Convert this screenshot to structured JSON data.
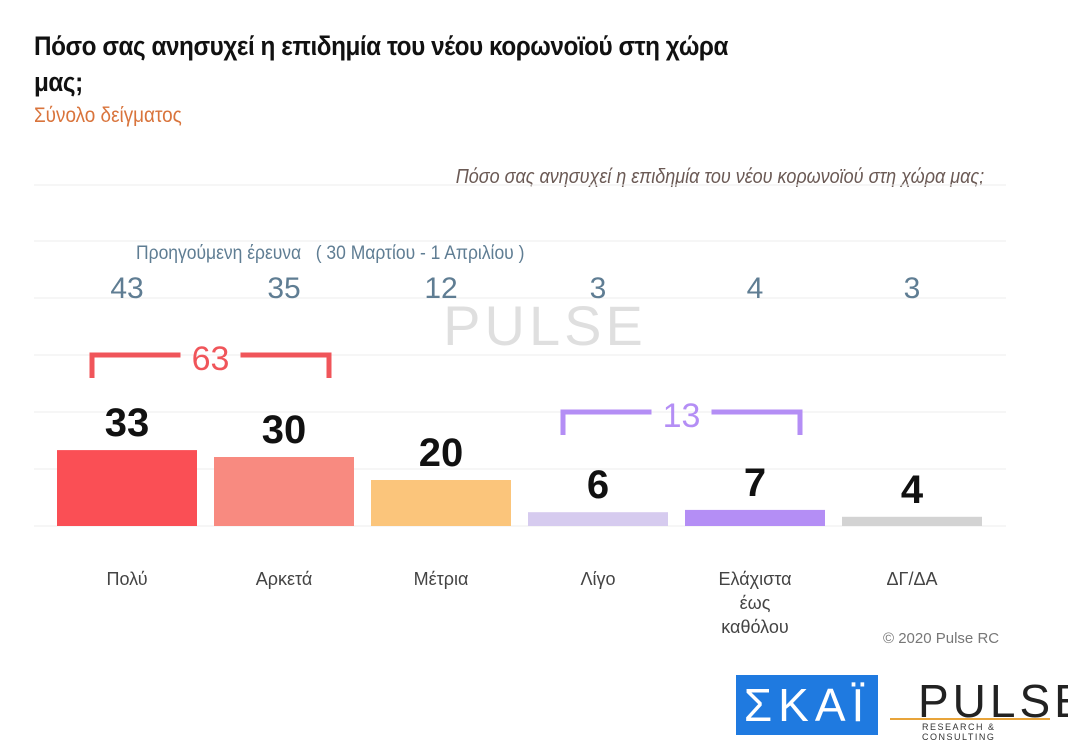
{
  "chart_data": {
    "type": "bar",
    "title": "Πόσο σας ανησυχεί η επιδημία του νέου κορωνοϊού στη χώρα μας;",
    "subtitle": "Σύνολο δείγματος",
    "inner_title": "Πόσο σας ανησυχεί η επιδημία του νέου κορωνοϊού στη χώρα μας;",
    "categories": [
      "Πολύ",
      "Αρκετά",
      "Μέτρια",
      "Λίγο",
      "Ελάχιστα έως καθόλου",
      "ΔΓ/ΔΑ"
    ],
    "category_lines": [
      [
        "Πολύ"
      ],
      [
        "Αρκετά"
      ],
      [
        "Μέτρια"
      ],
      [
        "Λίγο"
      ],
      [
        "Ελάχιστα",
        "έως",
        "καθόλου"
      ],
      [
        "ΔΓ/ΔΑ"
      ]
    ],
    "values": [
      33,
      30,
      20,
      6,
      7,
      4
    ],
    "colors": [
      "#fa4f55",
      "#f88a80",
      "#fbc57b",
      "#d6cbef",
      "#b48ef5",
      "#d3d3d3"
    ],
    "previous_label": "Προηγούμενη έρευνα   ( 30 Μαρτίου - 1 Απριλίου )",
    "previous_values": [
      43,
      35,
      12,
      3,
      4,
      3
    ],
    "groups": [
      {
        "label": "63",
        "from": 0,
        "to": 1,
        "color": "#f0555a"
      },
      {
        "label": "13",
        "from": 3,
        "to": 4,
        "color": "#b48ef5"
      }
    ],
    "ylim": [
      0,
      100
    ],
    "grid": true
  },
  "copyright": "© 2020 Pulse RC",
  "logos": {
    "skai": "ΣΚΑΪ",
    "pulse": "PULSE",
    "pulse_sub": "RESEARCH & CONSULTING"
  }
}
